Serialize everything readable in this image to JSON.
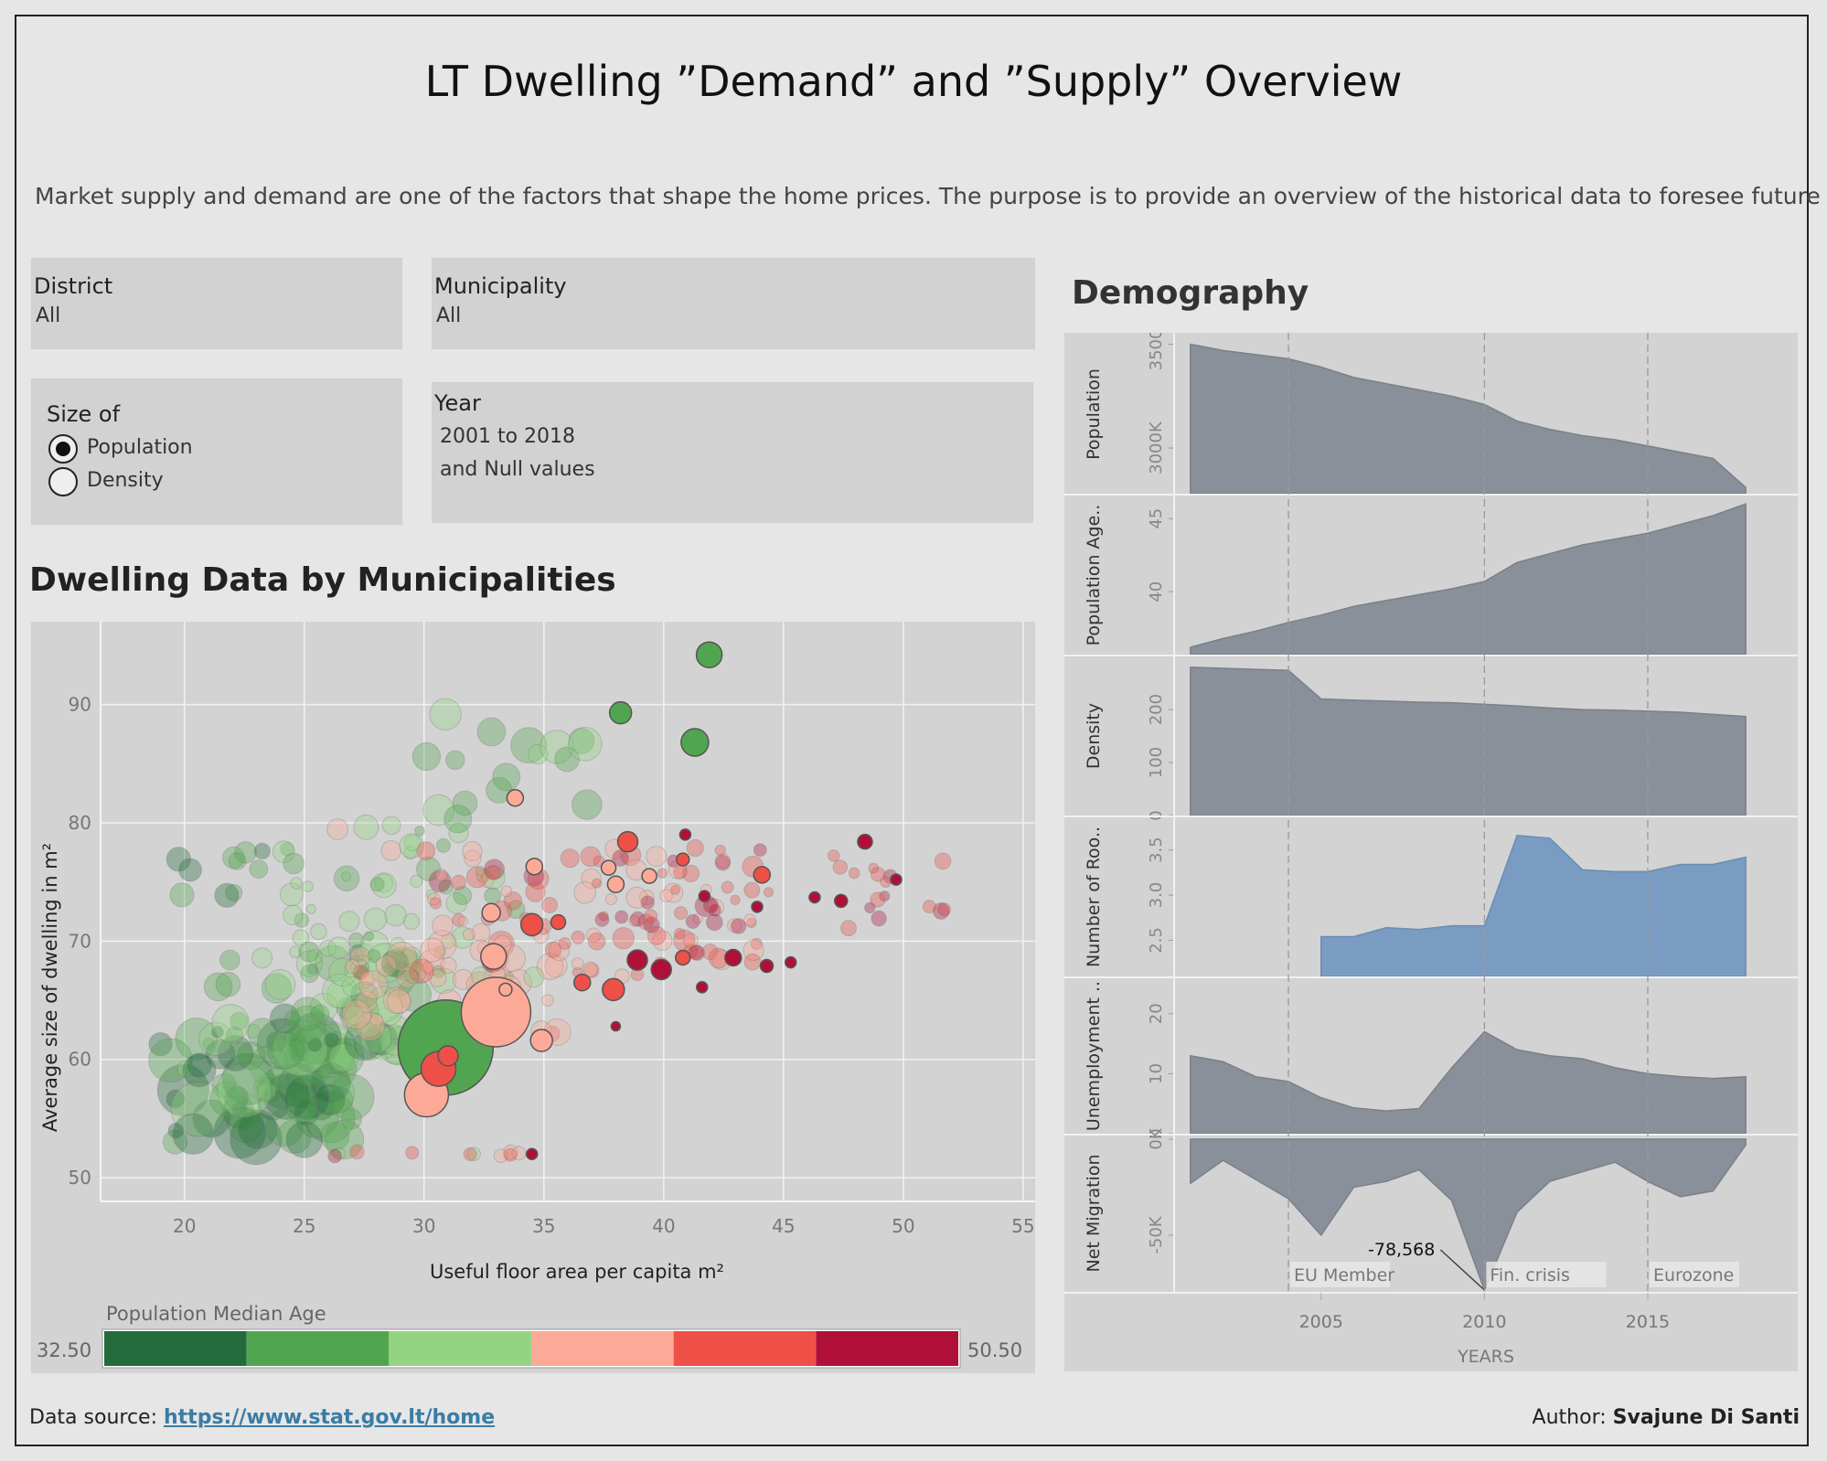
{
  "title": "LT Dwelling ”Demand” and ”Supply” Overview",
  "subtitle": "Market supply and demand are one of the factors that shape the home prices. The purpose is to provide an overview of the historical data to foresee future d..",
  "filters": {
    "district": {
      "label": "District",
      "value": "All"
    },
    "municipality": {
      "label": "Municipality",
      "value": "All"
    },
    "size_of": {
      "label": "Size of",
      "options": [
        "Population",
        "Density"
      ],
      "selected": "Population"
    },
    "year": {
      "label": "Year",
      "value_line1": "2001 to 2018",
      "value_line2": "and Null values"
    }
  },
  "sections": {
    "scatter_title": "Dwelling Data by Municipalities",
    "demography_title": "Demography"
  },
  "legend": {
    "title": "Population Median Age",
    "min": "32.50",
    "max": "50.50",
    "colors": [
      "#236b3a",
      "#52a550",
      "#93d483",
      "#fcaa97",
      "#ee5048",
      "#b01038"
    ]
  },
  "footer": {
    "source_label": "Data source:",
    "source_url": "https://www.stat.gov.lt/home",
    "author_label": "Author:",
    "author_name": "Svajune Di Santi"
  },
  "chart_data": [
    {
      "type": "scatter",
      "title": "Dwelling Data by Municipalities",
      "xlabel": "Useful floor area per capita m²",
      "ylabel": "Average size of dwelling in m²",
      "xlim": [
        16.5,
        55.5
      ],
      "ylim": [
        48,
        97
      ],
      "xticks": [
        20,
        25,
        30,
        35,
        40,
        45,
        50,
        55
      ],
      "yticks": [
        50,
        60,
        70,
        80,
        90
      ],
      "color_encoding": "Population Median Age",
      "color_range": [
        32.5,
        50.5
      ],
      "highlighted_points": [
        {
          "x": 41.9,
          "y": 94.2,
          "size": 14,
          "age": 36.5
        },
        {
          "x": 38.2,
          "y": 89.3,
          "size": 12,
          "age": 36.5
        },
        {
          "x": 41.3,
          "y": 86.8,
          "size": 15,
          "age": 36.5
        },
        {
          "x": 33.8,
          "y": 82.1,
          "size": 9,
          "age": 42.5
        },
        {
          "x": 37.7,
          "y": 76.2,
          "size": 8,
          "age": 43
        },
        {
          "x": 34.6,
          "y": 76.3,
          "size": 9,
          "age": 42.5
        },
        {
          "x": 38.5,
          "y": 78.4,
          "size": 11,
          "age": 45.5
        },
        {
          "x": 40.9,
          "y": 79.0,
          "size": 6,
          "age": 49
        },
        {
          "x": 40.8,
          "y": 76.9,
          "size": 7,
          "age": 46
        },
        {
          "x": 44.1,
          "y": 75.6,
          "size": 9,
          "age": 46
        },
        {
          "x": 48.4,
          "y": 78.4,
          "size": 8,
          "age": 49
        },
        {
          "x": 46.3,
          "y": 73.7,
          "size": 6,
          "age": 49
        },
        {
          "x": 47.4,
          "y": 73.4,
          "size": 7,
          "age": 49
        },
        {
          "x": 49.7,
          "y": 75.2,
          "size": 6,
          "age": 49
        },
        {
          "x": 43.9,
          "y": 72.9,
          "size": 6,
          "age": 49
        },
        {
          "x": 41.7,
          "y": 73.8,
          "size": 6,
          "age": 49
        },
        {
          "x": 38.0,
          "y": 74.8,
          "size": 9,
          "age": 43
        },
        {
          "x": 39.4,
          "y": 75.5,
          "size": 8,
          "age": 43
        },
        {
          "x": 32.8,
          "y": 72.4,
          "size": 10,
          "age": 43
        },
        {
          "x": 34.5,
          "y": 71.4,
          "size": 12,
          "age": 46
        },
        {
          "x": 35.6,
          "y": 71.6,
          "size": 8,
          "age": 46
        },
        {
          "x": 32.9,
          "y": 68.7,
          "size": 14,
          "age": 42.5
        },
        {
          "x": 36.6,
          "y": 66.5,
          "size": 9,
          "age": 46
        },
        {
          "x": 37.9,
          "y": 65.9,
          "size": 12,
          "age": 46
        },
        {
          "x": 38.9,
          "y": 68.4,
          "size": 11,
          "age": 49
        },
        {
          "x": 39.9,
          "y": 67.6,
          "size": 11,
          "age": 49
        },
        {
          "x": 40.8,
          "y": 68.6,
          "size": 8,
          "age": 46
        },
        {
          "x": 42.9,
          "y": 68.6,
          "size": 9,
          "age": 49
        },
        {
          "x": 44.3,
          "y": 67.9,
          "size": 7,
          "age": 49
        },
        {
          "x": 45.3,
          "y": 68.2,
          "size": 6,
          "age": 49
        },
        {
          "x": 41.6,
          "y": 66.1,
          "size": 6,
          "age": 49
        },
        {
          "x": 33.4,
          "y": 65.9,
          "size": 7,
          "age": 42.5
        },
        {
          "x": 38.0,
          "y": 62.8,
          "size": 5,
          "age": 49
        },
        {
          "x": 33.0,
          "y": 64.0,
          "size": 38,
          "age": 42
        },
        {
          "x": 34.9,
          "y": 61.6,
          "size": 12,
          "age": 42.5
        },
        {
          "x": 30.9,
          "y": 61.0,
          "size": 52,
          "age": 37.5
        },
        {
          "x": 31.0,
          "y": 60.3,
          "size": 11,
          "age": 46
        },
        {
          "x": 30.6,
          "y": 59.2,
          "size": 19,
          "age": 46
        },
        {
          "x": 30.1,
          "y": 57.0,
          "size": 24,
          "age": 42.5
        },
        {
          "x": 34.5,
          "y": 52.0,
          "size": 6,
          "age": 49
        }
      ]
    },
    {
      "type": "area",
      "title": "Demography",
      "xlabel": "YEARS",
      "x": [
        2001,
        2002,
        2003,
        2004,
        2005,
        2006,
        2007,
        2008,
        2009,
        2010,
        2011,
        2012,
        2013,
        2014,
        2015,
        2016,
        2017,
        2018
      ],
      "xticks": [
        2005,
        2010,
        2015
      ],
      "annotations": [
        {
          "x": 2004,
          "label": "EU Member"
        },
        {
          "x": 2010,
          "label": "Fin. crisis"
        },
        {
          "x": 2015,
          "label": "Eurozone"
        }
      ],
      "series": [
        {
          "name": "Population",
          "ylim": [
            2780000,
            3520000
          ],
          "yticks": [
            "3000K",
            "3500K"
          ],
          "ytick_values": [
            3000000,
            3500000
          ],
          "color": "#8a9099",
          "values": [
            3500000,
            3470000,
            3450000,
            3430000,
            3390000,
            3340000,
            3310000,
            3280000,
            3250000,
            3210000,
            3130000,
            3090000,
            3060000,
            3040000,
            3010000,
            2980000,
            2950000,
            2810000
          ]
        },
        {
          "name": "Population Age..",
          "ylim": [
            35.7,
            46.2
          ],
          "yticks": [
            "40",
            "45"
          ],
          "ytick_values": [
            40,
            45
          ],
          "color": "#8a9099",
          "values": [
            36.2,
            36.8,
            37.3,
            37.9,
            38.4,
            39.0,
            39.4,
            39.8,
            40.2,
            40.7,
            42.0,
            42.6,
            43.2,
            43.6,
            44.0,
            44.6,
            45.2,
            46.0
          ]
        },
        {
          "name": "Density",
          "ylim": [
            0,
            290
          ],
          "yticks": [
            "0",
            "100",
            "200"
          ],
          "ytick_values": [
            0,
            100,
            200
          ],
          "color": "#8a9099",
          "values": [
            280,
            278,
            276,
            274,
            220,
            218,
            216,
            214,
            213,
            210,
            207,
            203,
            200,
            199,
            197,
            195,
            191,
            187
          ]
        },
        {
          "name": "Number of Roo..",
          "ylim": [
            2.1,
            3.8
          ],
          "yticks": [
            "2.5",
            "3.0",
            "3.5"
          ],
          "ytick_values": [
            2.5,
            3.0,
            3.5
          ],
          "color": "#7b9cc2",
          "values": [
            null,
            null,
            null,
            null,
            2.54,
            2.54,
            2.64,
            2.62,
            2.66,
            2.66,
            3.66,
            3.63,
            3.28,
            3.26,
            3.26,
            3.34,
            3.34,
            3.42
          ]
        },
        {
          "name": "Unemployment ..",
          "ylim": [
            0,
            25
          ],
          "yticks": [
            "0",
            "10",
            "20"
          ],
          "ytick_values": [
            0,
            10,
            20
          ],
          "color": "#8a9099",
          "values": [
            13,
            12,
            9.5,
            8.7,
            6,
            4.3,
            3.8,
            4.2,
            11,
            17,
            14,
            13,
            12.5,
            11,
            10,
            9.5,
            9.2,
            9.5
          ]
        },
        {
          "name": "Net Migration",
          "ylim": [
            -80000,
            0
          ],
          "yticks": [
            "0K",
            "-50K"
          ],
          "ytick_values": [
            0,
            -50000
          ],
          "color": "#8a9099",
          "values": [
            -23000,
            -11000,
            -21000,
            -31000,
            -50000,
            -25000,
            -22000,
            -16000,
            -32000,
            -78568,
            -38000,
            -22000,
            -17000,
            -12000,
            -22000,
            -30000,
            -27000,
            -3000
          ],
          "callout": {
            "x": 2010,
            "label": "-78,568"
          }
        }
      ]
    }
  ]
}
